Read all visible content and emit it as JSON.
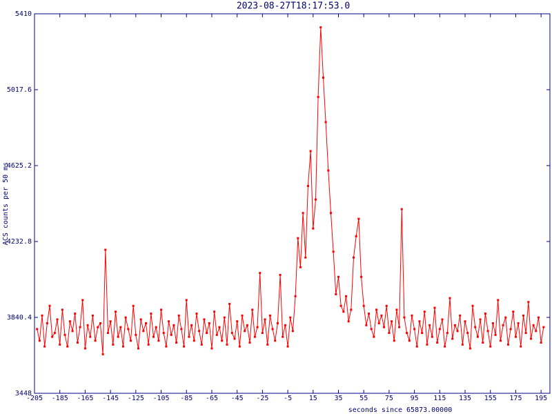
{
  "chart_data": {
    "type": "line",
    "title": "2023-08-27T18:17:53.0",
    "x_label": "seconds since 65873.00000",
    "y_label": "ACS counts per 50 ms",
    "xlim": [
      -205,
      202
    ],
    "ylim": [
      3448,
      5410
    ],
    "xticks": [
      -205,
      -185,
      -165,
      -145,
      -125,
      -105,
      -85,
      -65,
      -45,
      -25,
      -5,
      15,
      35,
      55,
      75,
      95,
      115,
      135,
      155,
      175,
      195
    ],
    "yticks": [
      3448,
      3840.4,
      4232.8,
      4625.2,
      5017.6,
      5410
    ],
    "x": [
      -203,
      -201,
      -199,
      -197,
      -195,
      -193,
      -191,
      -189,
      -187,
      -185,
      -183,
      -181,
      -179,
      -177,
      -175,
      -173,
      -171,
      -169,
      -167,
      -165,
      -163,
      -161,
      -159,
      -157,
      -155,
      -153,
      -151,
      -149,
      -147,
      -145,
      -143,
      -141,
      -139,
      -137,
      -135,
      -133,
      -131,
      -129,
      -127,
      -125,
      -123,
      -121,
      -119,
      -117,
      -115,
      -113,
      -111,
      -109,
      -107,
      -105,
      -103,
      -101,
      -99,
      -97,
      -95,
      -93,
      -91,
      -89,
      -87,
      -85,
      -83,
      -81,
      -79,
      -77,
      -75,
      -73,
      -71,
      -69,
      -67,
      -65,
      -63,
      -61,
      -59,
      -57,
      -55,
      -53,
      -51,
      -49,
      -47,
      -45,
      -43,
      -41,
      -39,
      -37,
      -35,
      -33,
      -31,
      -29,
      -27,
      -25,
      -23,
      -21,
      -19,
      -17,
      -15,
      -13,
      -11,
      -9,
      -7,
      -5,
      -3,
      -1,
      1,
      3,
      5,
      7,
      9,
      11,
      13,
      15,
      17,
      19,
      21,
      23,
      25,
      27,
      29,
      31,
      33,
      35,
      37,
      39,
      41,
      43,
      45,
      47,
      49,
      51,
      53,
      55,
      57,
      59,
      61,
      63,
      65,
      67,
      69,
      71,
      73,
      75,
      77,
      79,
      81,
      83,
      85,
      87,
      89,
      91,
      93,
      95,
      97,
      99,
      101,
      103,
      105,
      107,
      109,
      111,
      113,
      115,
      117,
      119,
      121,
      123,
      125,
      127,
      129,
      131,
      133,
      135,
      137,
      139,
      141,
      143,
      145,
      147,
      149,
      151,
      153,
      155,
      157,
      159,
      161,
      163,
      165,
      167,
      169,
      171,
      173,
      175,
      177,
      179,
      181,
      183,
      185,
      187,
      189,
      191,
      193,
      195,
      197
    ],
    "series": [
      {
        "color": "#ff0000",
        "values": [
          3780,
          3720,
          3850,
          3690,
          3810,
          3900,
          3740,
          3760,
          3830,
          3700,
          3880,
          3750,
          3690,
          3820,
          3770,
          3860,
          3710,
          3790,
          3930,
          3680,
          3800,
          3740,
          3850,
          3720,
          3790,
          3810,
          3650,
          4190,
          3760,
          3820,
          3700,
          3870,
          3740,
          3790,
          3690,
          3840,
          3780,
          3720,
          3900,
          3750,
          3680,
          3830,
          3770,
          3810,
          3700,
          3860,
          3740,
          3790,
          3720,
          3880,
          3760,
          3690,
          3820,
          3750,
          3800,
          3710,
          3850,
          3780,
          3690,
          3930,
          3740,
          3800,
          3720,
          3860,
          3770,
          3700,
          3830,
          3760,
          3810,
          3680,
          3870,
          3750,
          3790,
          3720,
          3840,
          3700,
          3910,
          3760,
          3730,
          3820,
          3690,
          3850,
          3770,
          3800,
          3710,
          3880,
          3740,
          3790,
          4070,
          3760,
          3830,
          3700,
          3850,
          3780,
          3720,
          3810,
          4060,
          3740,
          3800,
          3690,
          3840,
          3770,
          3950,
          4250,
          4100,
          4380,
          4150,
          4520,
          4700,
          4300,
          4450,
          4980,
          5340,
          5080,
          4850,
          4600,
          4380,
          4180,
          3960,
          4050,
          3900,
          3870,
          3950,
          3820,
          3880,
          4150,
          4260,
          4350,
          4050,
          3900,
          3800,
          3860,
          3780,
          3740,
          3880,
          3810,
          3850,
          3790,
          3900,
          3760,
          3820,
          3720,
          3880,
          3790,
          4400,
          3840,
          3760,
          3720,
          3850,
          3780,
          3690,
          3820,
          3760,
          3870,
          3700,
          3800,
          3740,
          3890,
          3710,
          3780,
          3830,
          3690,
          3760,
          3940,
          3730,
          3800,
          3770,
          3850,
          3700,
          3820,
          3760,
          3680,
          3900,
          3790,
          3740,
          3830,
          3710,
          3860,
          3770,
          3690,
          3810,
          3750,
          3930,
          3720,
          3800,
          3840,
          3700,
          3780,
          3870,
          3740,
          3810,
          3690,
          3850,
          3760,
          3920,
          3730,
          3800,
          3770,
          3840,
          3710,
          3790
        ]
      }
    ]
  }
}
